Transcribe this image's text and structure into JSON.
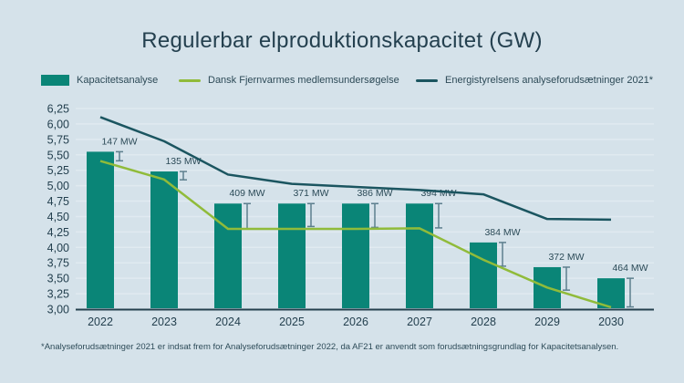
{
  "page": {
    "footnote": "*Analyseforudsætninger 2021 er indsat frem for Analyseforudsætninger 2022, da AF21 er anvendt som forudsætningsgrundlag for Kapacitetsanalysen."
  },
  "colors": {
    "background": "#d5e2ea",
    "grid": "#e0eaf0",
    "axis": "#24404d",
    "bar": "#0a8577",
    "green_line": "#90bb3a",
    "dark_line": "#1b5560",
    "errorbar": "#5d7f8e",
    "text": "#24404f"
  },
  "chart_data": {
    "type": "bar",
    "title": "Regulerbar elproduktionskapacitet (GW)",
    "unit": "GW",
    "categories": [
      "2022",
      "2023",
      "2024",
      "2025",
      "2026",
      "2027",
      "2028",
      "2029",
      "2030"
    ],
    "series": [
      {
        "name": "Kapacitetsanalyse",
        "type": "bar",
        "color": "#0a8577",
        "values": [
          5.55,
          5.23,
          4.71,
          4.71,
          4.71,
          4.71,
          4.08,
          3.68,
          3.5
        ]
      },
      {
        "name": "Dansk Fjernvarmes medlemsundersøgelse",
        "type": "line",
        "color": "#90bb3a",
        "values": [
          5.4,
          5.1,
          4.3,
          4.3,
          4.3,
          4.31,
          3.8,
          3.35,
          3.03
        ]
      },
      {
        "name": "Energistyrelsens analyseforudsætninger 2021*",
        "type": "line",
        "color": "#1b5560",
        "values": [
          6.11,
          5.72,
          5.18,
          5.03,
          4.98,
          4.93,
          4.86,
          4.46,
          4.45
        ]
      }
    ],
    "error_labels": [
      "147 MW",
      "135 MW",
      "409 MW",
      "371 MW",
      "386 MW",
      "394 MW",
      "384 MW",
      "372 MW",
      "464 MW"
    ],
    "error_values_mw": [
      147,
      135,
      409,
      371,
      386,
      394,
      384,
      372,
      464
    ],
    "ylim": [
      3.0,
      6.25
    ],
    "ytick_step": 0.25,
    "ytick_labels": [
      "3,00",
      "3,25",
      "3,50",
      "3,75",
      "4,00",
      "4,25",
      "4,50",
      "4,75",
      "5,00",
      "5,25",
      "5,50",
      "5,75",
      "6,00",
      "6,25"
    ],
    "grid": true,
    "legend_position": "top"
  }
}
